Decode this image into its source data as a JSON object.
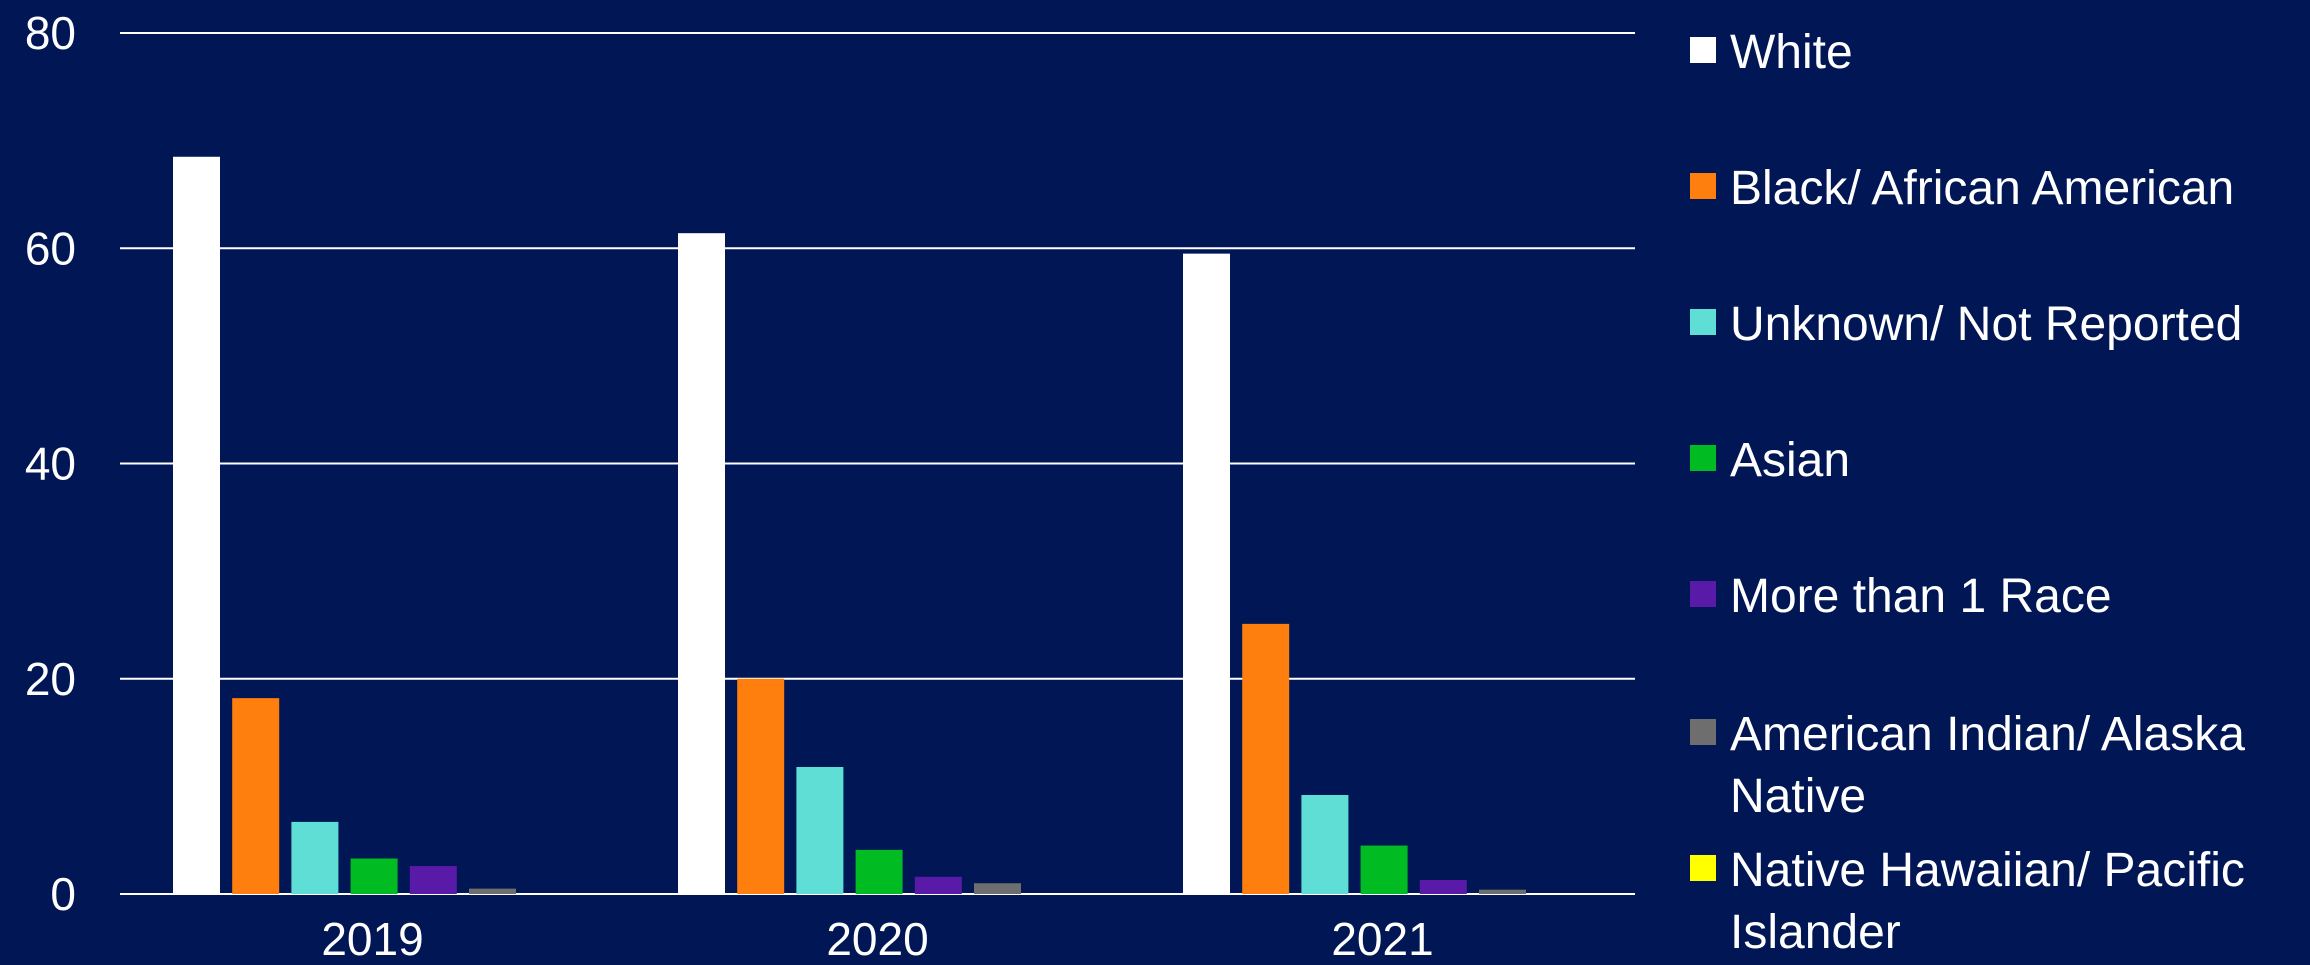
{
  "chart_data": {
    "type": "bar",
    "categories": [
      "2019",
      "2020",
      "2021"
    ],
    "ylim": [
      0,
      80
    ],
    "yticks": [
      "0",
      "20",
      "40",
      "60",
      "80"
    ],
    "grid": true,
    "legend_position": "right",
    "series": [
      {
        "name": "White",
        "color": "#ffffff",
        "values": [
          68.5,
          61.4,
          59.5
        ]
      },
      {
        "name": "Black/ African American",
        "color": "#ff7f0e",
        "values": [
          18.2,
          20.0,
          25.1
        ]
      },
      {
        "name": "Unknown/ Not Reported",
        "color": "#5fded5",
        "values": [
          6.7,
          11.8,
          9.2
        ]
      },
      {
        "name": "Asian",
        "color": "#00bb22",
        "values": [
          3.3,
          4.1,
          4.5
        ]
      },
      {
        "name": "More than 1 Race",
        "color": "#5a1aa8",
        "values": [
          2.6,
          1.6,
          1.3
        ]
      },
      {
        "name": "American Indian/ Alaska Native",
        "color": "#6e6e6e",
        "values": [
          0.5,
          1.0,
          0.4
        ]
      },
      {
        "name": "Native Hawaiian/ Pacific Islander",
        "color": "#ffff00",
        "values": [
          0,
          0,
          0
        ]
      }
    ]
  }
}
